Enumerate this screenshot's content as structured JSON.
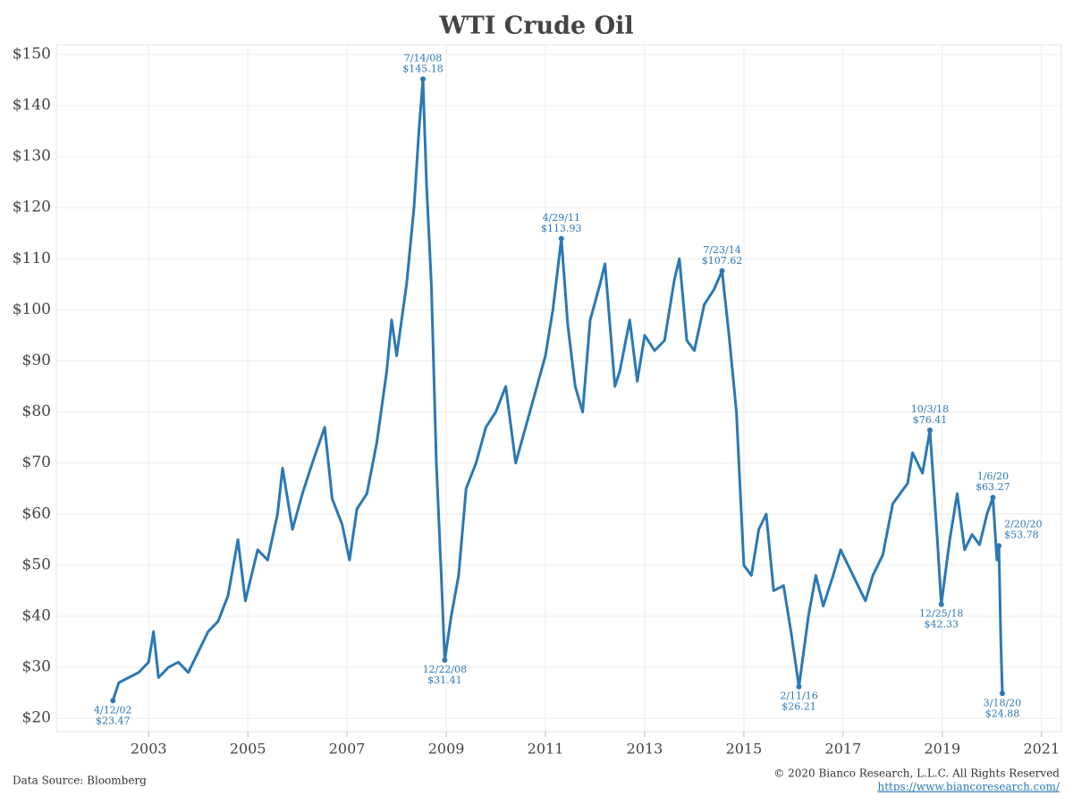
{
  "chart_data": {
    "type": "line",
    "title": "WTI Crude Oil",
    "color": "#2b78b4",
    "grid": true,
    "x": [
      2002.28,
      2002.4,
      2002.6,
      2002.8,
      2003.0,
      2003.1,
      2003.2,
      2003.4,
      2003.6,
      2003.8,
      2004.0,
      2004.2,
      2004.4,
      2004.6,
      2004.8,
      2004.95,
      2005.2,
      2005.4,
      2005.6,
      2005.7,
      2005.9,
      2006.1,
      2006.3,
      2006.55,
      2006.7,
      2006.9,
      2007.05,
      2007.2,
      2007.4,
      2007.6,
      2007.8,
      2007.9,
      2008.0,
      2008.2,
      2008.35,
      2008.45,
      2008.53,
      2008.6,
      2008.7,
      2008.8,
      2008.9,
      2008.97,
      2009.1,
      2009.25,
      2009.4,
      2009.6,
      2009.8,
      2010.0,
      2010.2,
      2010.4,
      2010.6,
      2010.8,
      2011.0,
      2011.15,
      2011.32,
      2011.45,
      2011.6,
      2011.75,
      2011.9,
      2012.1,
      2012.2,
      2012.4,
      2012.5,
      2012.7,
      2012.85,
      2013.0,
      2013.2,
      2013.4,
      2013.6,
      2013.7,
      2013.85,
      2014.0,
      2014.2,
      2014.4,
      2014.56,
      2014.7,
      2014.85,
      2015.0,
      2015.15,
      2015.3,
      2015.45,
      2015.6,
      2015.8,
      2015.95,
      2016.11,
      2016.3,
      2016.45,
      2016.6,
      2016.8,
      2016.95,
      2017.2,
      2017.45,
      2017.6,
      2017.8,
      2018.0,
      2018.3,
      2018.4,
      2018.6,
      2018.75,
      2018.9,
      2018.98,
      2019.15,
      2019.3,
      2019.45,
      2019.6,
      2019.75,
      2019.9,
      2020.02,
      2020.1,
      2020.14,
      2020.18,
      2020.21
    ],
    "values": [
      23.47,
      27,
      28,
      29,
      31,
      37,
      28,
      30,
      31,
      29,
      33,
      37,
      39,
      44,
      55,
      43,
      53,
      51,
      60,
      69,
      57,
      64,
      70,
      77,
      63,
      58,
      51,
      61,
      64,
      74,
      88,
      98,
      91,
      105,
      120,
      135,
      145.18,
      125,
      105,
      70,
      48,
      31.41,
      40,
      48,
      65,
      70,
      77,
      80,
      85,
      70,
      77,
      84,
      91,
      100,
      113.93,
      97,
      85,
      80,
      98,
      105,
      109,
      85,
      88,
      98,
      86,
      95,
      92,
      94,
      106,
      110,
      94,
      92,
      101,
      104,
      107.62,
      95,
      80,
      50,
      48,
      57,
      60,
      45,
      46,
      37,
      26.21,
      40,
      48,
      42,
      48,
      53,
      48,
      43,
      48,
      52,
      62,
      66,
      72,
      68,
      76.41,
      55,
      42.33,
      55,
      64,
      53,
      56,
      54,
      60,
      63.27,
      51,
      53.78,
      35,
      24.88
    ],
    "xlim": [
      2001.14,
      2021.4
    ],
    "xticks": [
      2003,
      2005,
      2007,
      2009,
      2011,
      2013,
      2015,
      2017,
      2019,
      2021
    ],
    "ylim": [
      17.4,
      151.9
    ],
    "yticks": [
      {
        "value": 20,
        "label": "$20"
      },
      {
        "value": 30,
        "label": "$30"
      },
      {
        "value": 40,
        "label": "$40"
      },
      {
        "value": 50,
        "label": "$50"
      },
      {
        "value": 60,
        "label": "$60"
      },
      {
        "value": 70,
        "label": "$70"
      },
      {
        "value": 80,
        "label": "$80"
      },
      {
        "value": 90,
        "label": "$90"
      },
      {
        "value": 100,
        "label": "$100"
      },
      {
        "value": 110,
        "label": "$110"
      },
      {
        "value": 120,
        "label": "$120"
      },
      {
        "value": 130,
        "label": "$130"
      },
      {
        "value": 140,
        "label": "$140"
      },
      {
        "value": 150,
        "label": "$150"
      }
    ],
    "annotations": [
      {
        "x": 2002.28,
        "value": 23.47,
        "date": "4/12/02",
        "label": "$23.47"
      },
      {
        "x": 2008.53,
        "value": 145.18,
        "date": "7/14/08",
        "label": "$145.18"
      },
      {
        "x": 2008.97,
        "value": 31.41,
        "date": "12/22/08",
        "label": "$31.41"
      },
      {
        "x": 2011.32,
        "value": 113.93,
        "date": "4/29/11",
        "label": "$113.93"
      },
      {
        "x": 2014.56,
        "value": 107.62,
        "date": "7/23/14",
        "label": "$107.62"
      },
      {
        "x": 2016.11,
        "value": 26.21,
        "date": "2/11/16",
        "label": "$26.21"
      },
      {
        "x": 2018.75,
        "value": 76.41,
        "date": "10/3/18",
        "label": "$76.41"
      },
      {
        "x": 2018.98,
        "value": 42.33,
        "date": "12/25/18",
        "label": "$42.33"
      },
      {
        "x": 2020.02,
        "value": 63.27,
        "date": "1/6/20",
        "label": "$63.27"
      },
      {
        "x": 2020.14,
        "value": 53.78,
        "date": "2/20/20",
        "label": "$53.78"
      },
      {
        "x": 2020.21,
        "value": 24.88,
        "date": "3/18/20",
        "label": "$24.88"
      }
    ]
  },
  "footer": {
    "source": "Data Source: Bloomberg",
    "copyright": "© 2020 Bianco Research, L.L.C. All Rights Reserved",
    "url": "https://www.biancoresearch.com/"
  }
}
